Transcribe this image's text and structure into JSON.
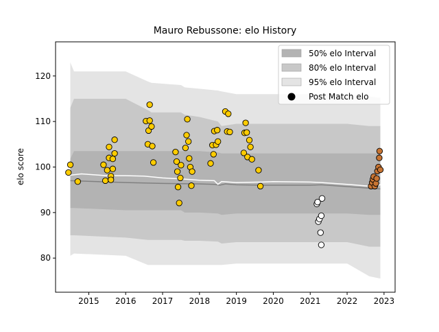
{
  "chart_data": {
    "type": "scatter",
    "title": "Mauro Rebussone: elo History",
    "xlabel": "",
    "ylabel": "elo score",
    "xlim": [
      2014.1,
      2023.3
    ],
    "ylim": [
      72.5,
      127.5
    ],
    "grid": false,
    "legend_placement": "top-right",
    "x_ticks": [
      2015,
      2016,
      2017,
      2018,
      2019,
      2020,
      2021,
      2022,
      2023
    ],
    "y_ticks": [
      80,
      90,
      100,
      110,
      120
    ],
    "legend": [
      {
        "label": "50% elo Interval",
        "kind": "band50"
      },
      {
        "label": "80% elo Interval",
        "kind": "band80"
      },
      {
        "label": "95% elo Interval",
        "kind": "band95"
      },
      {
        "label": "Post Match elo",
        "kind": "marker"
      }
    ],
    "colors": {
      "band50": "#b3b3b3",
      "band80": "#c8c8c8",
      "band95": "#e4e4e4",
      "median_line": "#808080",
      "mean_line": "#ffffff",
      "points_gold": "#ffcc00",
      "points_white": "#ffffff",
      "points_brown": "#c87533",
      "marker_edge": "#000000"
    },
    "bands": {
      "x": [
        2014.5,
        2014.6,
        2016.0,
        2016.6,
        2016.7,
        2017.5,
        2017.6,
        2018.0,
        2018.5,
        2018.6,
        2019.0,
        2019.5,
        2020.0,
        2021.0,
        2021.5,
        2022.0,
        2022.6,
        2022.9
      ],
      "band95_upper": [
        123,
        121,
        121,
        118.8,
        118.5,
        118,
        117.5,
        117.2,
        116.8,
        116.6,
        116,
        116,
        116,
        116,
        116,
        116,
        115.5,
        115.2
      ],
      "band95_lower": [
        80.5,
        81,
        80.5,
        78.5,
        78.5,
        78.5,
        78.5,
        78.5,
        78.5,
        78.5,
        78.8,
        78.8,
        78.8,
        78.8,
        78.8,
        78.8,
        76,
        75.5
      ],
      "band80_upper": [
        113,
        115,
        115,
        112.5,
        112,
        112,
        111.5,
        111,
        110,
        109,
        109.5,
        109.5,
        109.5,
        109.5,
        109.5,
        109.5,
        109,
        109
      ],
      "band80_lower": [
        85,
        85,
        84.5,
        84,
        84,
        84,
        83.8,
        83.8,
        83.6,
        83.2,
        83.5,
        83.5,
        83.5,
        83.5,
        83.5,
        83.5,
        82.5,
        82.5
      ],
      "band50_upper": [
        101.8,
        103.5,
        103.5,
        103.5,
        103.5,
        103.5,
        103.5,
        103.5,
        103.2,
        103,
        103,
        103,
        103,
        103,
        103,
        103,
        103,
        103
      ],
      "band50_lower": [
        91,
        91,
        90.5,
        90.5,
        90.5,
        90.5,
        90,
        90,
        89.8,
        89.5,
        89.8,
        89.8,
        89.8,
        89.8,
        89.8,
        89.8,
        89.5,
        89.5
      ]
    },
    "median_line": {
      "x": [
        2014.5,
        2016.0,
        2017.0,
        2018.0,
        2018.4,
        2018.55,
        2018.7,
        2019.0,
        2019.7,
        2020.0,
        2021.0,
        2021.3,
        2022.0,
        2022.7,
        2022.9
      ],
      "y": [
        97.0,
        96.6,
        96.4,
        96.3,
        96.2,
        96.0,
        96.3,
        96.1,
        96.0,
        96.0,
        96.0,
        96.1,
        95.7,
        95.3,
        95.2
      ]
    },
    "mean_line": {
      "x": [
        2014.5,
        2014.8,
        2015.5,
        2016.0,
        2016.5,
        2017.0,
        2017.5,
        2018.0,
        2018.4,
        2018.5,
        2018.6,
        2019.0,
        2019.7,
        2020.0,
        2021.0,
        2021.3,
        2022.0,
        2022.6,
        2022.75,
        2022.9
      ],
      "y": [
        98.2,
        98.5,
        98.1,
        98.1,
        98.0,
        97.6,
        97.4,
        97.1,
        97.0,
        96.2,
        96.8,
        96.6,
        96.7,
        96.8,
        96.7,
        96.6,
        96.2,
        95.8,
        96.0,
        96.1
      ]
    },
    "series": [
      {
        "group": "gold",
        "x": [
          2014.45,
          2014.5,
          2014.7,
          2015.4,
          2015.45,
          2015.5,
          2015.55,
          2015.55,
          2015.6,
          2015.65,
          2015.65,
          2015.7,
          2015.7,
          2015.6,
          2016.55,
          2016.6,
          2016.62,
          2016.65,
          2016.65,
          2016.7,
          2016.72,
          2016.75,
          2017.35,
          2017.38,
          2017.4,
          2017.42,
          2017.45,
          2017.48,
          2017.5,
          2017.62,
          2017.65,
          2017.67,
          2017.7,
          2017.72,
          2017.75,
          2017.78,
          2017.8,
          2018.3,
          2018.35,
          2018.38,
          2018.4,
          2018.45,
          2018.48,
          2018.5,
          2018.7,
          2018.75,
          2018.78,
          2018.82,
          2019.2,
          2019.22,
          2019.25,
          2019.28,
          2019.3,
          2019.35,
          2019.38,
          2019.42,
          2019.6,
          2019.65
        ],
        "y": [
          98.8,
          100.5,
          96.8,
          100.5,
          97.0,
          99.3,
          104.4,
          102.0,
          98.0,
          99.6,
          101.8,
          103.0,
          106.0,
          97.2,
          110.1,
          105.0,
          108.0,
          113.7,
          110.2,
          108.9,
          104.6,
          101.0,
          103.3,
          101.2,
          99.0,
          95.6,
          92.1,
          97.6,
          100.4,
          104.2,
          107.0,
          110.5,
          105.6,
          101.9,
          100.0,
          95.9,
          99.0,
          100.8,
          104.8,
          102.8,
          107.9,
          104.9,
          108.1,
          105.6,
          112.2,
          107.8,
          111.7,
          107.7,
          103.1,
          107.5,
          109.7,
          107.6,
          102.2,
          105.9,
          104.4,
          101.7,
          99.3,
          95.8
        ]
      },
      {
        "group": "white",
        "x": [
          2021.18,
          2021.2,
          2021.22,
          2021.25,
          2021.28,
          2021.3,
          2021.3,
          2021.32
        ],
        "y": [
          91.9,
          92.3,
          88.0,
          88.6,
          85.6,
          82.9,
          89.3,
          93.1
        ]
      },
      {
        "group": "brown",
        "x": [
          2022.65,
          2022.68,
          2022.7,
          2022.72,
          2022.75,
          2022.78,
          2022.8,
          2022.82,
          2022.85,
          2022.87,
          2022.88,
          2022.9
        ],
        "y": [
          95.8,
          96.6,
          97.3,
          97.9,
          95.8,
          96.4,
          97.5,
          99.1,
          100.0,
          102.0,
          103.5,
          99.4
        ]
      }
    ]
  }
}
